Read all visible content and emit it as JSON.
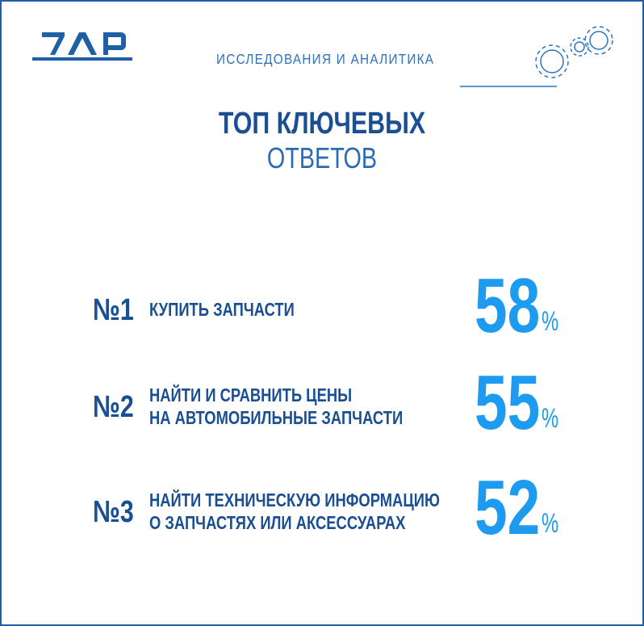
{
  "header": {
    "section": "ИССЛЕДОВАНИЯ И АНАЛИТИКА"
  },
  "title": "ТОП КЛЮЧЕВЫХ",
  "subtitle": "ОТВЕТОВ",
  "items": [
    {
      "rank": "№1",
      "lines": [
        "КУПИТЬ ЗАПЧАСТИ"
      ],
      "value": 58,
      "unit": "%"
    },
    {
      "rank": "№2",
      "lines": [
        "НАЙТИ И СРАВНИТЬ ЦЕНЫ",
        "НА АВТОМОБИЛЬНЫЕ ЗАПЧАСТИ"
      ],
      "value": 55,
      "unit": "%"
    },
    {
      "rank": "№3",
      "lines": [
        "НАЙТИ ТЕХНИЧЕСКУЮ ИНФОРМАЦИЮ",
        "О ЗАПЧАСТЯХ ИЛИ АКСЕССУАРАХ"
      ],
      "value": 52,
      "unit": "%"
    }
  ]
}
